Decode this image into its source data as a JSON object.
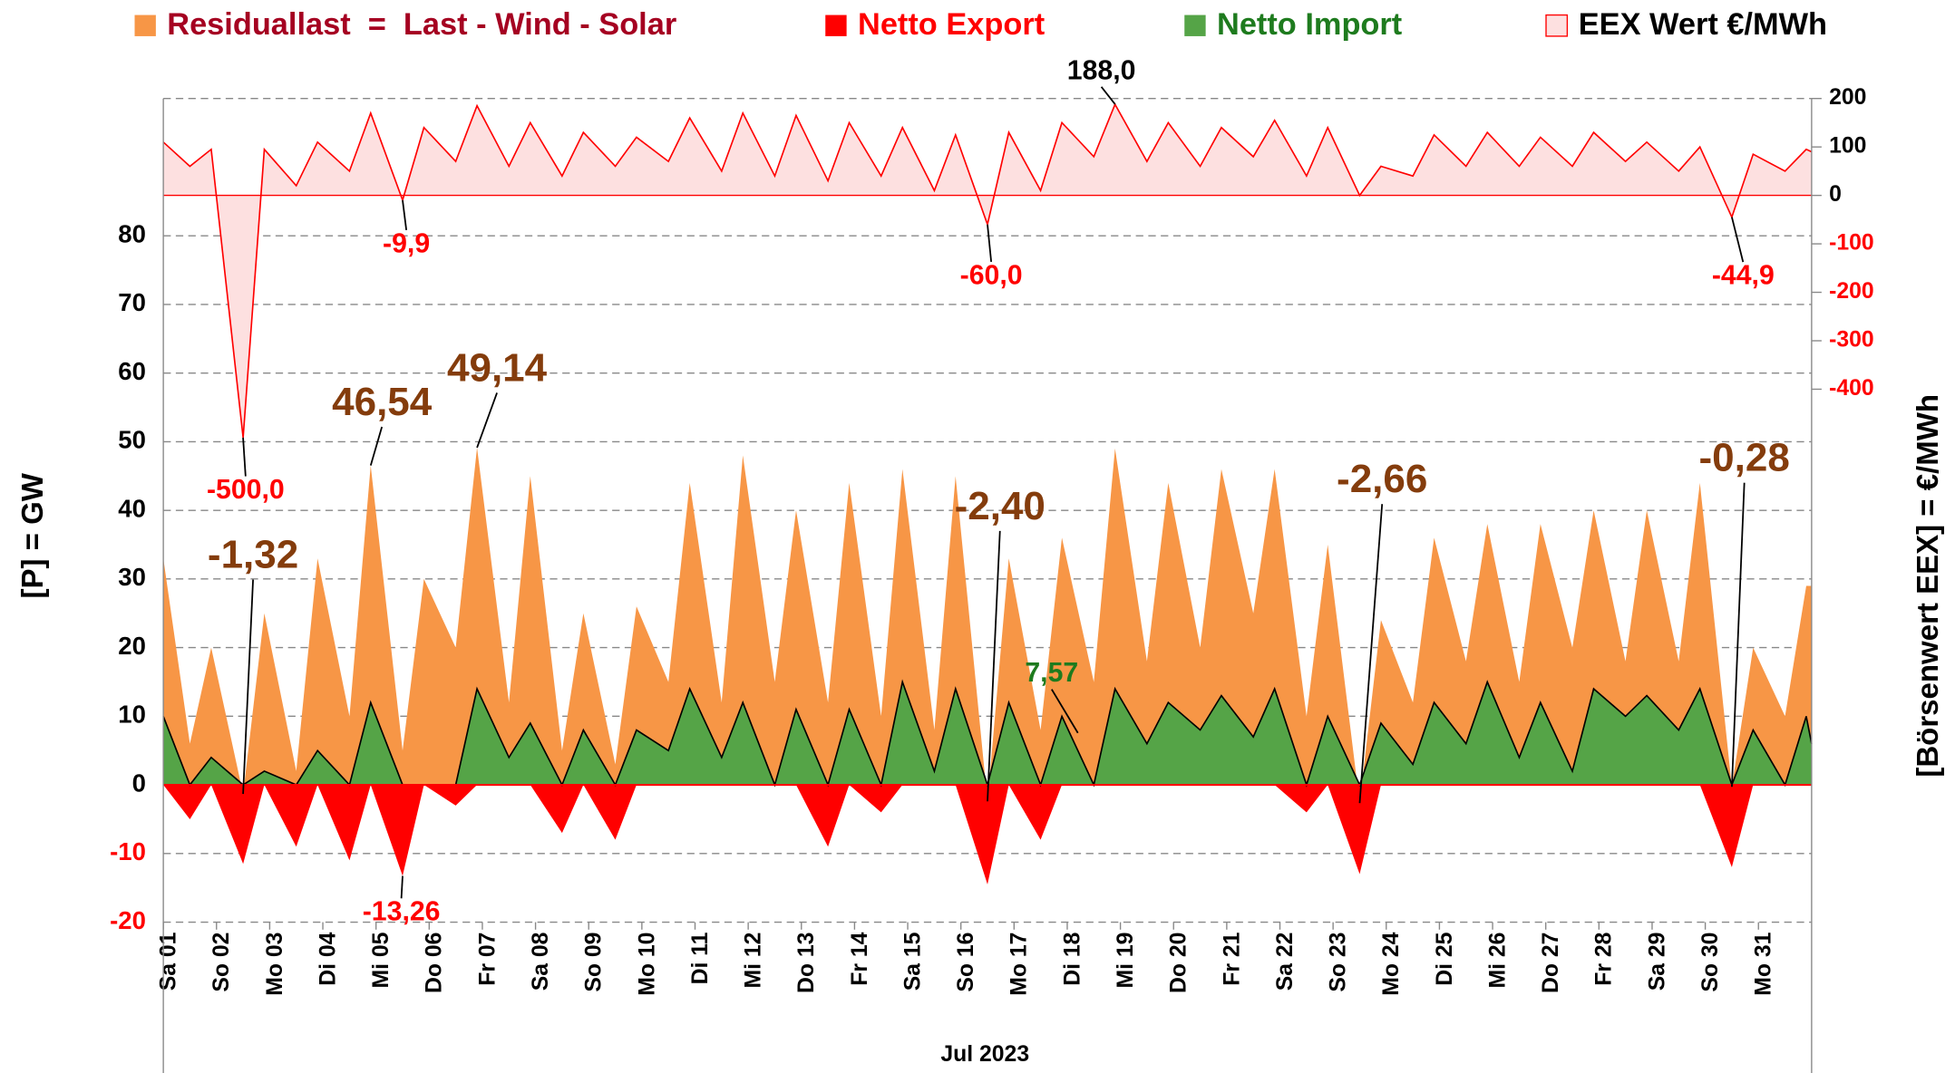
{
  "chart_data": {
    "type": "area",
    "x_title": "Jul 2023",
    "y_title": "[P]  =  GW",
    "y2_title": "[Börsenwert  EEX]   =  €/MWh",
    "xlim": [
      0,
      31
    ],
    "xticks": [
      {
        "value": 0,
        "label": "Sa 01"
      },
      {
        "value": 1,
        "label": "So 02"
      },
      {
        "value": 2,
        "label": "Mo 03"
      },
      {
        "value": 3,
        "label": "Di 04"
      },
      {
        "value": 4,
        "label": "Mi 05"
      },
      {
        "value": 5,
        "label": "Do 06"
      },
      {
        "value": 6,
        "label": "Fr 07"
      },
      {
        "value": 7,
        "label": "Sa 08"
      },
      {
        "value": 8,
        "label": "So 09"
      },
      {
        "value": 9,
        "label": "Mo 10"
      },
      {
        "value": 10,
        "label": "Di 11"
      },
      {
        "value": 11,
        "label": "Mi 12"
      },
      {
        "value": 12,
        "label": "Do 13"
      },
      {
        "value": 13,
        "label": "Fr 14"
      },
      {
        "value": 14,
        "label": "Sa 15"
      },
      {
        "value": 15,
        "label": "So 16"
      },
      {
        "value": 16,
        "label": "Mo 17"
      },
      {
        "value": 17,
        "label": "Di 18"
      },
      {
        "value": 18,
        "label": "Mi 19"
      },
      {
        "value": 19,
        "label": "Do 20"
      },
      {
        "value": 20,
        "label": "Fr 21"
      },
      {
        "value": 21,
        "label": "Sa 22"
      },
      {
        "value": 22,
        "label": "So 23"
      },
      {
        "value": 23,
        "label": "Mo 24"
      },
      {
        "value": 24,
        "label": "Di 25"
      },
      {
        "value": 25,
        "label": "Mi 26"
      },
      {
        "value": 26,
        "label": "Do 27"
      },
      {
        "value": 27,
        "label": "Fr 28"
      },
      {
        "value": 28,
        "label": "Sa 29"
      },
      {
        "value": 29,
        "label": "So 30"
      },
      {
        "value": 30,
        "label": "Mo 31"
      }
    ],
    "ylim": [
      -20,
      100
    ],
    "yticks": [
      -20,
      -10,
      0,
      10,
      20,
      30,
      40,
      50,
      60,
      70,
      80
    ],
    "y2lim": [
      -1500,
      200
    ],
    "y2ticks": [
      -400,
      -300,
      -200,
      -100,
      0,
      100,
      200
    ],
    "grid": true,
    "x": [
      0,
      0.5,
      0.9,
      1.5,
      1.9,
      2.5,
      2.9,
      3.5,
      3.9,
      4.5,
      4.9,
      5.5,
      5.9,
      6.5,
      6.9,
      7.5,
      7.9,
      8.5,
      8.9,
      9.5,
      9.9,
      10.5,
      10.9,
      11.5,
      11.9,
      12.5,
      12.9,
      13.5,
      13.9,
      14.5,
      14.9,
      15.5,
      15.9,
      16.5,
      16.9,
      17.5,
      17.9,
      18.5,
      18.9,
      19.5,
      19.9,
      20.5,
      20.9,
      21.5,
      21.9,
      22.5,
      22.9,
      23.5,
      23.9,
      24.5,
      24.9,
      25.5,
      25.9,
      26.5,
      26.9,
      27.5,
      27.9,
      28.5,
      28.9,
      29.5,
      29.9,
      30.5,
      30.9,
      31
    ],
    "series": [
      {
        "name": "Residuallast  =  Last - Wind - Solar",
        "color": "#f79646",
        "label_color": "#a50021",
        "values": [
          33,
          6,
          20,
          -1.32,
          25,
          2,
          33,
          10,
          46.54,
          5,
          30,
          20,
          49.14,
          12,
          45,
          5,
          25,
          3,
          26,
          15,
          44,
          12,
          48,
          15,
          40,
          12,
          44,
          10,
          46,
          8,
          45,
          -2.4,
          33,
          8,
          36,
          15,
          49,
          18,
          44,
          20,
          46,
          25,
          46,
          10,
          35,
          -2.66,
          24,
          12,
          36,
          18,
          38,
          15,
          38,
          20,
          40,
          18,
          40,
          18,
          44,
          -0.28,
          20,
          10,
          29,
          29
        ]
      },
      {
        "name": "Netto Export",
        "color": "#ff0000",
        "label_color": "#ff0000",
        "values": [
          0,
          -5,
          0,
          -11.5,
          0,
          -9,
          0,
          -11,
          0,
          -13.26,
          0,
          -3,
          0,
          0,
          0,
          -7,
          0,
          -8,
          0,
          0,
          0,
          0,
          0,
          0,
          0,
          -9,
          0,
          -4,
          0,
          0,
          0,
          -14.5,
          0,
          -8,
          0,
          0,
          0,
          0,
          0,
          0,
          0,
          0,
          0,
          -4,
          0,
          -13,
          0,
          0,
          0,
          0,
          0,
          0,
          0,
          0,
          0,
          0,
          0,
          0,
          0,
          -12,
          0,
          0,
          0,
          0
        ]
      },
      {
        "name": "Netto Import",
        "color": "#55a447",
        "label_color": "#1e7b1e",
        "values": [
          10,
          0,
          4,
          0,
          2,
          0,
          5,
          0,
          12,
          0,
          0,
          0,
          14,
          4,
          9,
          0,
          8,
          0,
          8,
          5,
          14,
          4,
          12,
          0,
          11,
          0,
          11,
          0,
          15,
          2,
          14,
          0,
          12,
          0,
          10,
          0,
          14,
          6,
          12,
          8,
          13,
          7,
          14,
          0,
          10,
          0,
          9,
          3,
          12,
          6,
          15,
          4,
          12,
          2,
          14,
          10,
          13,
          8,
          14,
          0,
          8,
          0,
          10,
          6
        ]
      },
      {
        "name": "EEX Wert €/MWh",
        "color": "#ff0000",
        "fill": "#fde0e0",
        "label_color": "#000000",
        "axis": "y2",
        "values": [
          110,
          60,
          95,
          -500,
          95,
          20,
          110,
          50,
          170,
          -9.9,
          140,
          70,
          185,
          60,
          150,
          40,
          130,
          60,
          120,
          70,
          160,
          50,
          170,
          40,
          165,
          30,
          150,
          40,
          140,
          10,
          125,
          -60,
          130,
          10,
          150,
          80,
          188,
          70,
          150,
          60,
          140,
          80,
          155,
          40,
          140,
          0,
          60,
          40,
          125,
          60,
          130,
          60,
          120,
          60,
          130,
          70,
          110,
          50,
          100,
          -44.9,
          85,
          50,
          95,
          90
        ]
      }
    ],
    "annotations": [
      {
        "value": 188.0,
        "label": "188,0",
        "x": 17.9,
        "axis": "y2",
        "color": "#000000"
      },
      {
        "value": -9.9,
        "label": "-9,9",
        "x": 4.5,
        "axis": "y2",
        "color": "#ff0000"
      },
      {
        "value": -500.0,
        "label": "-500,0",
        "x": 1.5,
        "axis": "y2",
        "color": "#ff0000"
      },
      {
        "value": -60.0,
        "label": "-60,0",
        "x": 15.5,
        "axis": "y2",
        "color": "#ff0000"
      },
      {
        "value": -44.9,
        "label": "-44,9",
        "x": 29.5,
        "axis": "y2",
        "color": "#ff0000"
      },
      {
        "value": 46.54,
        "label": "46,54",
        "x": 3.9,
        "axis": "y",
        "color": "#843c0c"
      },
      {
        "value": 49.14,
        "label": "49,14",
        "x": 5.9,
        "axis": "y",
        "color": "#843c0c"
      },
      {
        "value": -1.32,
        "label": "-1,32",
        "x": 1.5,
        "axis": "y",
        "color": "#843c0c"
      },
      {
        "value": -13.26,
        "label": "-13,26",
        "x": 4.5,
        "axis": "y",
        "color": "#ff0000"
      },
      {
        "value": -2.4,
        "label": "-2,40",
        "x": 15.5,
        "axis": "y",
        "color": "#843c0c"
      },
      {
        "value": -2.66,
        "label": "-2,66",
        "x": 22.5,
        "axis": "y",
        "color": "#843c0c"
      },
      {
        "value": -0.28,
        "label": "-0,28",
        "x": 29.5,
        "axis": "y",
        "color": "#843c0c"
      },
      {
        "value": 7.57,
        "label": "7,57",
        "x": 17.2,
        "axis": "y",
        "color": "#1e7b1e"
      }
    ]
  }
}
